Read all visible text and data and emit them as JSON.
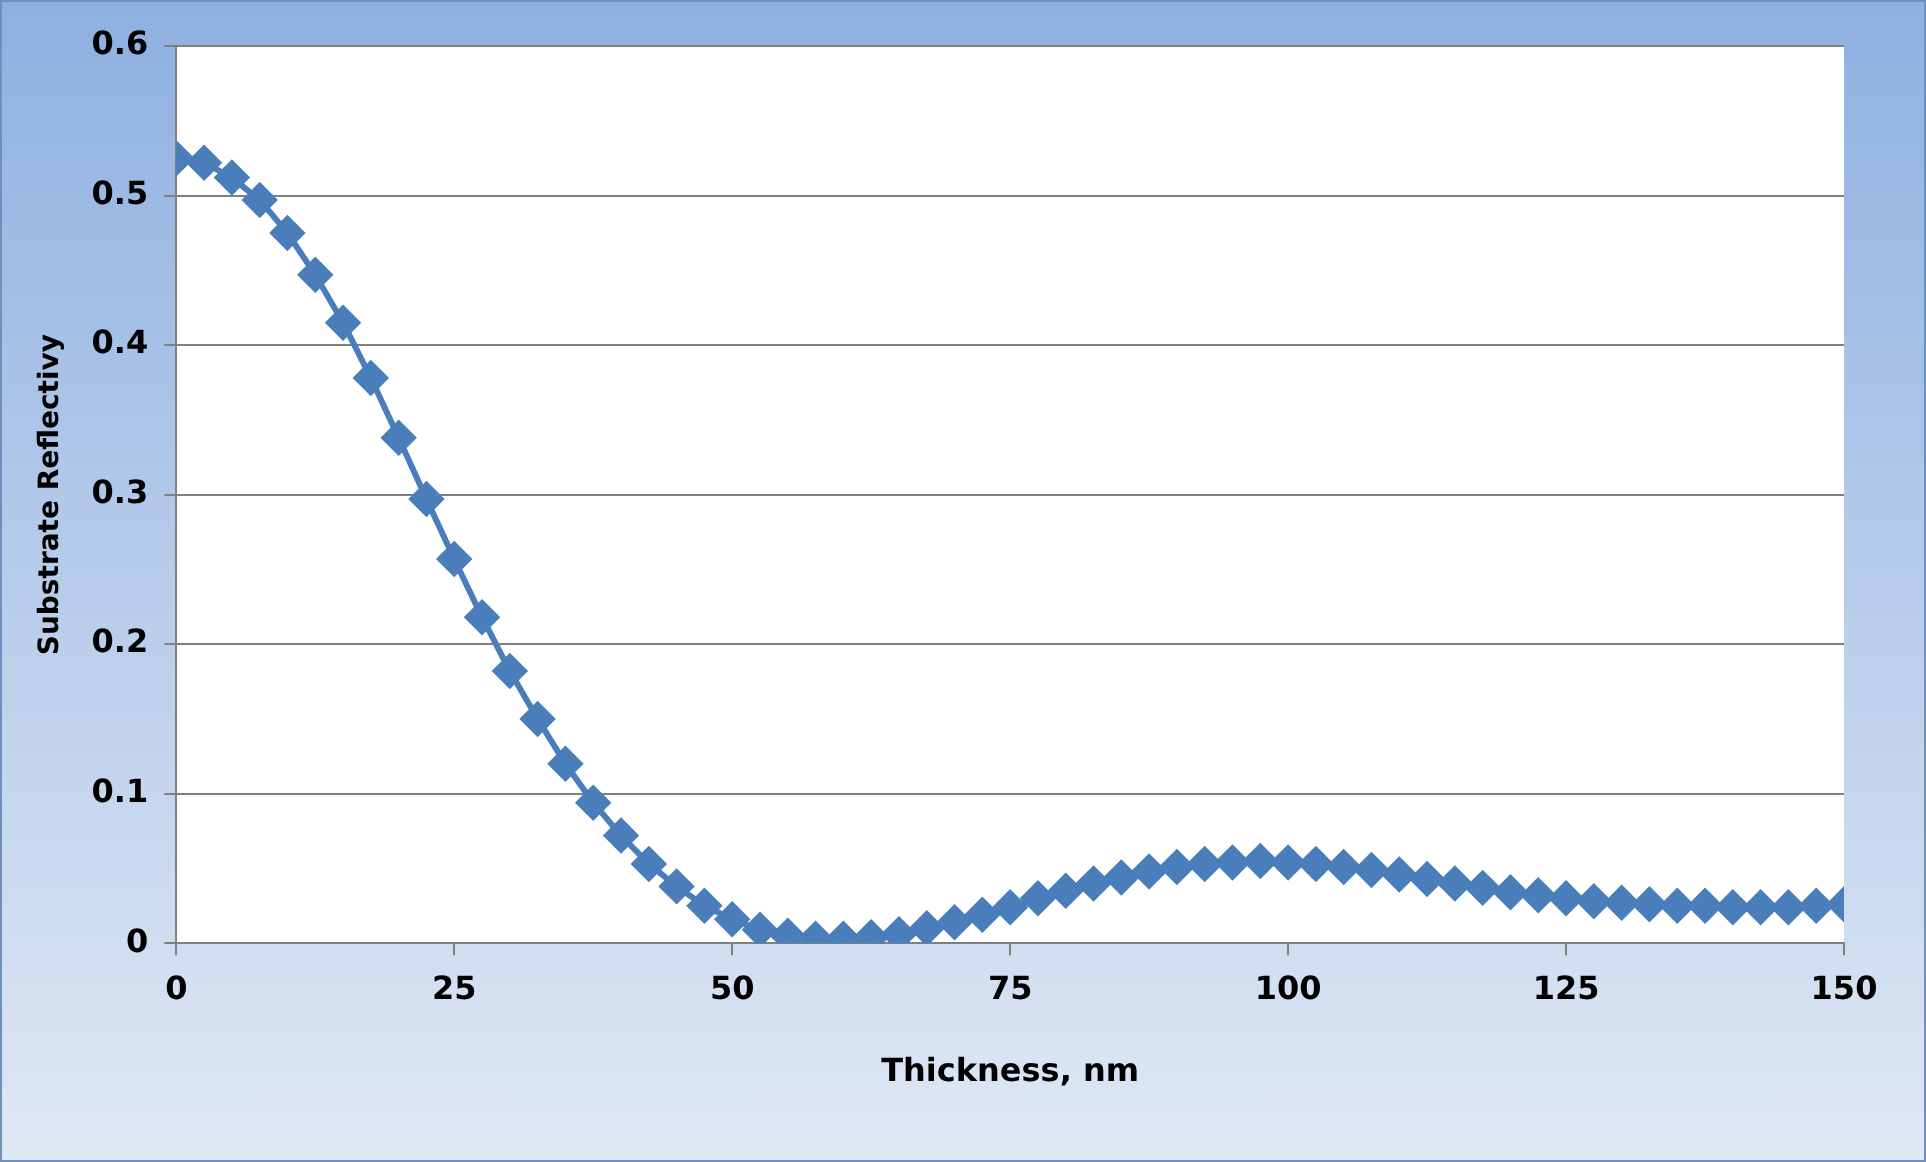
{
  "chart_data": {
    "type": "line",
    "xlabel": "Thickness, nm",
    "ylabel": "Substrate Reflectivy",
    "xlim": [
      0,
      150
    ],
    "xticks": [
      0,
      25,
      50,
      75,
      100,
      125,
      150
    ],
    "ylim": [
      0,
      0.6
    ],
    "yticks": [
      0,
      0.1,
      0.2,
      0.3,
      0.4,
      0.5,
      0.6
    ],
    "grid": "y",
    "legend": false,
    "marker": "diamond",
    "line_style": "solid",
    "x": [
      0,
      2.5,
      5,
      7.5,
      10,
      12.5,
      15,
      17.5,
      20,
      22.5,
      25,
      27.5,
      30,
      32.5,
      35,
      37.5,
      40,
      42.5,
      45,
      47.5,
      50,
      52.5,
      55,
      57.5,
      60,
      62.5,
      65,
      67.5,
      70,
      72.5,
      75,
      77.5,
      80,
      82.5,
      85,
      87.5,
      90,
      92.5,
      95,
      97.5,
      100,
      102.5,
      105,
      107.5,
      110,
      112.5,
      115,
      117.5,
      120,
      122.5,
      125,
      127.5,
      130,
      132.5,
      135,
      137.5,
      140,
      142.5,
      145,
      147.5,
      150
    ],
    "series": [
      {
        "color": "#4a7ebb",
        "values": [
          0.525,
          0.522,
          0.512,
          0.497,
          0.475,
          0.447,
          0.415,
          0.378,
          0.338,
          0.297,
          0.257,
          0.218,
          0.182,
          0.15,
          0.12,
          0.094,
          0.072,
          0.053,
          0.038,
          0.025,
          0.016,
          0.009,
          0.005,
          0.003,
          0.003,
          0.004,
          0.006,
          0.01,
          0.014,
          0.019,
          0.024,
          0.03,
          0.035,
          0.04,
          0.044,
          0.048,
          0.051,
          0.053,
          0.054,
          0.055,
          0.054,
          0.053,
          0.051,
          0.049,
          0.046,
          0.043,
          0.04,
          0.037,
          0.034,
          0.032,
          0.03,
          0.028,
          0.027,
          0.026,
          0.025,
          0.025,
          0.024,
          0.024,
          0.024,
          0.025,
          0.026
        ]
      }
    ]
  }
}
